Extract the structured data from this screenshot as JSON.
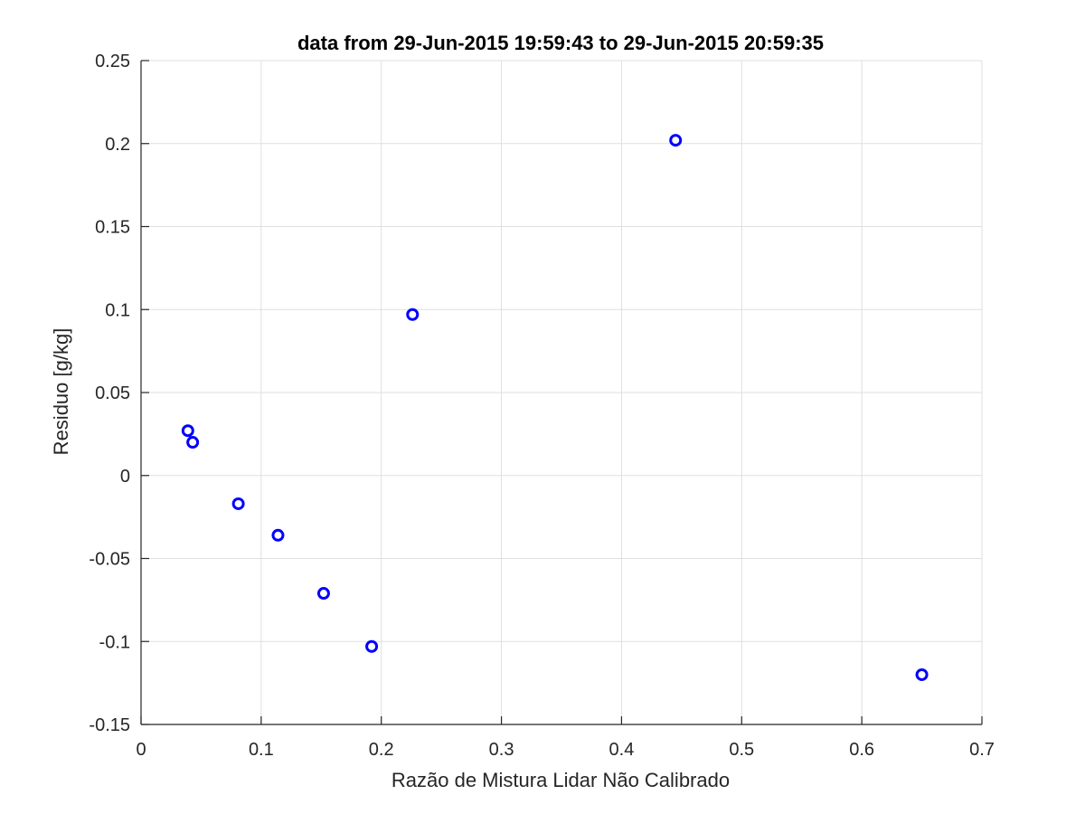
{
  "chart_data": {
    "type": "scatter",
    "title": "data from 29-Jun-2015 19:59:43 to 29-Jun-2015 20:59:35",
    "xlabel": "Razão de Mistura Lidar Não Calibrado",
    "ylabel": "Residuo [g/kg]",
    "xlim": [
      0,
      0.7
    ],
    "ylim": [
      -0.15,
      0.25
    ],
    "x_ticks": [
      0,
      0.1,
      0.2,
      0.3,
      0.4,
      0.5,
      0.6,
      0.7
    ],
    "x_tick_labels": [
      "0",
      "0.1",
      "0.2",
      "0.3",
      "0.4",
      "0.5",
      "0.6",
      "0.7"
    ],
    "y_ticks": [
      -0.15,
      -0.1,
      -0.05,
      0,
      0.05,
      0.1,
      0.15,
      0.2,
      0.25
    ],
    "y_tick_labels": [
      "-0.15",
      "-0.1",
      "-0.05",
      "0",
      "0.05",
      "0.1",
      "0.15",
      "0.2",
      "0.25"
    ],
    "grid": true,
    "marker": "circle",
    "marker_color": "#0000ff",
    "points": [
      {
        "x": 0.039,
        "y": 0.027
      },
      {
        "x": 0.043,
        "y": 0.02
      },
      {
        "x": 0.081,
        "y": -0.017
      },
      {
        "x": 0.114,
        "y": -0.036
      },
      {
        "x": 0.152,
        "y": -0.071
      },
      {
        "x": 0.192,
        "y": -0.103
      },
      {
        "x": 0.226,
        "y": 0.097
      },
      {
        "x": 0.445,
        "y": 0.202
      },
      {
        "x": 0.65,
        "y": -0.12
      }
    ]
  }
}
